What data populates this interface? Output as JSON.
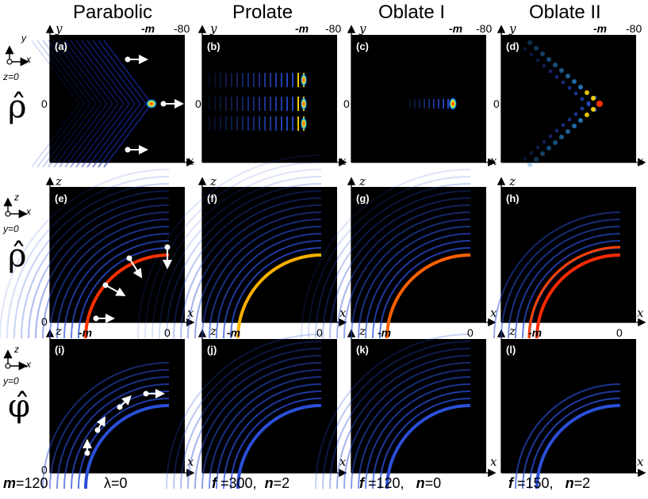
{
  "columns": [
    "Parabolic",
    "Prolate",
    "Oblate I",
    "Oblate II"
  ],
  "row_symbols": {
    "rho_top": "ρ̂",
    "rho_mid": "ρ̂",
    "phi": "φ̂"
  },
  "panel_labels": [
    "(a)",
    "(b)",
    "(c)",
    "(d)",
    "(e)",
    "(f)",
    "(g)",
    "(h)",
    "(i)",
    "(j)",
    "(k)",
    "(l)"
  ],
  "top_ticks": {
    "m": "-m",
    "eighty": "-80"
  },
  "xz_ticks": {
    "m": "-m",
    "zero": "0"
  },
  "y_zero": "0",
  "axis_names": {
    "x": "x",
    "y": "y",
    "z": "z"
  },
  "plane_labels": {
    "top": "z=0",
    "mid": "y=0",
    "bottom": "y=0"
  },
  "bottom_params": {
    "m_label": "m",
    "m_value": "=120",
    "lambda": "λ=0",
    "prolate": {
      "f_label": "f",
      "f_value": " =300,",
      "n_label": "n",
      "n_value": "=2"
    },
    "oblate1": {
      "f_label": "f",
      "f_value": " =120,",
      "n_label": "n",
      "n_value": "=0"
    },
    "oblate2": {
      "f_label": "f",
      "f_value": " =150,",
      "n_label": "n",
      "n_value": "=2"
    }
  },
  "colors": {
    "panel_bg": "#000000",
    "rings": "#2a4fd8",
    "hot": "#ff2a00",
    "mid": "#ffd800",
    "cyan": "#00e0ff",
    "arrow": "#ffffff"
  }
}
